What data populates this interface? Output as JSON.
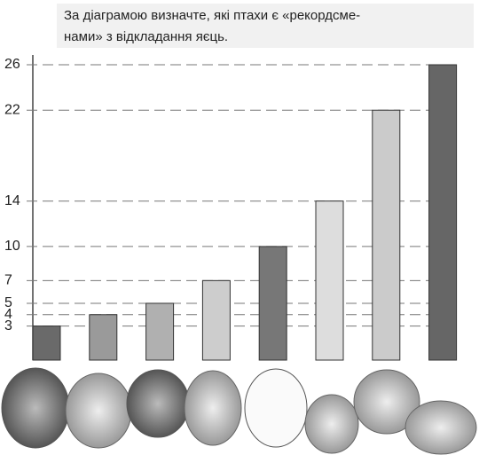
{
  "chart_data": {
    "type": "bar",
    "title": [
      "За діаграмою визначте, які птахи є «рекордсме-",
      "нами» з відкладання яєць."
    ],
    "categories": [
      null,
      null,
      null,
      null,
      null,
      null,
      null,
      null
    ],
    "values": [
      3,
      4,
      5,
      7,
      10,
      14,
      22,
      26
    ],
    "colors": [
      "#6a6a6a",
      "#9a9a9a",
      "#b0b0b0",
      "#cdcdcd",
      "#777777",
      "#dddddd",
      "#cbcbcb",
      "#666666"
    ],
    "ylim": [
      0,
      26
    ],
    "yticks": [
      3,
      4,
      5,
      7,
      10,
      14,
      22,
      26
    ],
    "grid": true
  }
}
